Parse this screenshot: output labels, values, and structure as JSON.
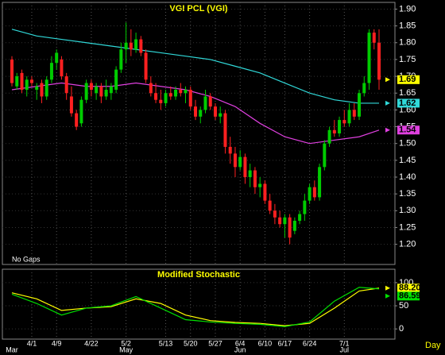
{
  "chart_data": [
    {
      "type": "candlestick",
      "title": "VGI PCL (VGI)",
      "note": "No Gaps",
      "x_axis_label": "Day",
      "categories": [
        null,
        null,
        null,
        null,
        "4/1",
        null,
        null,
        null,
        null,
        "4/9",
        null,
        null,
        null,
        null,
        null,
        null,
        "4/22",
        null,
        null,
        null,
        null,
        null,
        null,
        "5/2",
        null,
        null,
        null,
        null,
        null,
        null,
        null,
        "5/13",
        null,
        null,
        null,
        null,
        "5/20",
        null,
        null,
        null,
        null,
        "5/27",
        null,
        null,
        null,
        null,
        "6/4",
        null,
        null,
        null,
        null,
        "6/10",
        null,
        null,
        null,
        "6/17",
        null,
        null,
        null,
        null,
        "6/24",
        null,
        null,
        null,
        null,
        null,
        null,
        "7/1",
        null,
        null,
        null,
        null,
        null,
        null,
        null
      ],
      "months": [
        "Mar",
        null,
        null,
        null,
        null,
        null,
        null,
        null,
        null,
        null,
        null,
        null,
        null,
        null,
        null,
        null,
        null,
        null,
        null,
        null,
        null,
        null,
        null,
        "May",
        null,
        null,
        null,
        null,
        null,
        null,
        null,
        null,
        null,
        null,
        null,
        null,
        null,
        null,
        null,
        null,
        null,
        null,
        null,
        null,
        null,
        null,
        "Jun",
        null,
        null,
        null,
        null,
        null,
        null,
        null,
        null,
        null,
        null,
        null,
        null,
        null,
        null,
        null,
        null,
        null,
        null,
        null,
        null,
        "Jul",
        null,
        null,
        null,
        null,
        null,
        null,
        null
      ],
      "open": [
        1.75,
        1.67,
        1.71,
        1.66,
        1.69,
        1.66,
        1.68,
        1.64,
        1.69,
        1.74,
        1.75,
        1.7,
        1.64,
        1.59,
        1.56,
        1.63,
        1.68,
        1.65,
        1.67,
        1.64,
        1.65,
        1.66,
        1.72,
        1.78,
        1.8,
        1.78,
        1.81,
        1.77,
        1.68,
        1.65,
        1.63,
        1.62,
        1.65,
        1.64,
        1.66,
        1.65,
        1.66,
        1.61,
        1.58,
        1.6,
        1.64,
        1.61,
        1.58,
        1.59,
        1.49,
        1.47,
        1.43,
        1.46,
        1.4,
        1.42,
        1.37,
        1.38,
        1.33,
        1.3,
        1.28,
        1.26,
        1.28,
        1.24,
        1.27,
        1.29,
        1.33,
        1.37,
        1.34,
        1.43,
        1.5,
        1.54,
        1.53,
        1.57,
        1.56,
        1.6,
        1.58,
        1.65,
        1.68,
        1.83,
        1.8
      ],
      "high": [
        1.76,
        1.71,
        1.72,
        1.7,
        1.7,
        1.68,
        1.69,
        1.7,
        1.76,
        1.78,
        1.76,
        1.71,
        1.67,
        1.6,
        1.64,
        1.69,
        1.69,
        1.68,
        1.68,
        1.69,
        1.68,
        1.73,
        1.8,
        1.86,
        1.84,
        1.83,
        1.82,
        1.78,
        1.7,
        1.68,
        1.66,
        1.66,
        1.67,
        1.67,
        1.68,
        1.67,
        1.67,
        1.63,
        1.61,
        1.66,
        1.65,
        1.62,
        1.61,
        1.6,
        1.52,
        1.49,
        1.48,
        1.47,
        1.44,
        1.43,
        1.4,
        1.39,
        1.35,
        1.32,
        1.3,
        1.29,
        1.29,
        1.28,
        1.3,
        1.35,
        1.38,
        1.39,
        1.44,
        1.51,
        1.55,
        1.57,
        1.58,
        1.6,
        1.62,
        1.62,
        1.66,
        1.7,
        1.84,
        1.84,
        1.84
      ],
      "low": [
        1.67,
        1.66,
        1.65,
        1.64,
        1.67,
        1.63,
        1.62,
        1.63,
        1.68,
        1.72,
        1.69,
        1.63,
        1.58,
        1.54,
        1.55,
        1.62,
        1.64,
        1.63,
        1.62,
        1.63,
        1.63,
        1.65,
        1.71,
        1.74,
        1.76,
        1.77,
        1.76,
        1.68,
        1.64,
        1.62,
        1.6,
        1.61,
        1.63,
        1.63,
        1.64,
        1.62,
        1.6,
        1.57,
        1.56,
        1.59,
        1.6,
        1.57,
        1.56,
        1.47,
        1.44,
        1.4,
        1.42,
        1.38,
        1.37,
        1.35,
        1.34,
        1.32,
        1.29,
        1.26,
        1.25,
        1.22,
        1.2,
        1.23,
        1.26,
        1.27,
        1.32,
        1.33,
        1.33,
        1.42,
        1.49,
        1.52,
        1.52,
        1.55,
        1.55,
        1.57,
        1.57,
        1.64,
        1.66,
        1.78,
        1.66
      ],
      "close": [
        1.68,
        1.7,
        1.66,
        1.69,
        1.68,
        1.67,
        1.64,
        1.69,
        1.74,
        1.77,
        1.7,
        1.65,
        1.59,
        1.55,
        1.63,
        1.68,
        1.66,
        1.67,
        1.64,
        1.66,
        1.67,
        1.72,
        1.78,
        1.8,
        1.78,
        1.81,
        1.77,
        1.69,
        1.65,
        1.63,
        1.62,
        1.65,
        1.64,
        1.66,
        1.65,
        1.66,
        1.61,
        1.58,
        1.6,
        1.64,
        1.61,
        1.58,
        1.59,
        1.49,
        1.47,
        1.43,
        1.46,
        1.4,
        1.42,
        1.37,
        1.38,
        1.33,
        1.3,
        1.28,
        1.26,
        1.28,
        1.22,
        1.27,
        1.29,
        1.33,
        1.37,
        1.34,
        1.43,
        1.5,
        1.54,
        1.53,
        1.57,
        1.56,
        1.6,
        1.58,
        1.65,
        1.68,
        1.83,
        1.8,
        1.69
      ],
      "up_color": "#00cc00",
      "down_color": "#ff2020",
      "last_label": "1.69",
      "last_label_color": "#ffff00",
      "series": [
        {
          "color": "#30d8d8",
          "x": [
            0,
            5,
            10,
            15,
            20,
            25,
            30,
            35,
            40,
            45,
            50,
            55,
            60,
            65,
            70,
            74
          ],
          "values": [
            1.84,
            1.82,
            1.81,
            1.8,
            1.79,
            1.78,
            1.77,
            1.76,
            1.75,
            1.73,
            1.71,
            1.68,
            1.65,
            1.63,
            1.62,
            1.62
          ],
          "last_label": "1.62"
        },
        {
          "color": "#e040e0",
          "x": [
            0,
            5,
            10,
            15,
            20,
            25,
            30,
            35,
            40,
            45,
            50,
            55,
            60,
            65,
            70,
            74
          ],
          "values": [
            1.66,
            1.67,
            1.68,
            1.67,
            1.67,
            1.68,
            1.67,
            1.66,
            1.64,
            1.61,
            1.56,
            1.52,
            1.5,
            1.51,
            1.52,
            1.54
          ],
          "last_label": "1.54"
        }
      ],
      "ylim": [
        1.14,
        1.92
      ],
      "yticks": [
        {
          "value": 1.9,
          "label": "1.90"
        },
        1.85,
        {
          "value": 1.8,
          "label": "1.80"
        },
        1.75,
        {
          "value": 1.7,
          "label": "1.70"
        },
        1.65,
        {
          "value": 1.6,
          "label": "1.60"
        },
        1.55,
        {
          "value": 1.5,
          "label": "1.50"
        },
        1.45,
        {
          "value": 1.4,
          "label": "1.40"
        },
        1.35,
        {
          "value": 1.3,
          "label": "1.30"
        },
        1.25,
        {
          "value": 1.2,
          "label": "1.20"
        }
      ],
      "grid": true
    },
    {
      "type": "line",
      "title": "Modified Stochastic",
      "series": [
        {
          "color": "#ffff00",
          "x": [
            0,
            5,
            10,
            15,
            20,
            25,
            30,
            35,
            40,
            45,
            50,
            55,
            60,
            65,
            70,
            74
          ],
          "values": [
            78,
            65,
            40,
            45,
            48,
            65,
            55,
            30,
            18,
            14,
            12,
            7,
            12,
            45,
            82,
            88.2
          ],
          "last_label": "88.20"
        },
        {
          "color": "#00e000",
          "x": [
            0,
            5,
            10,
            15,
            20,
            25,
            30,
            35,
            40,
            45,
            50,
            55,
            60,
            65,
            70,
            74
          ],
          "values": [
            75,
            55,
            30,
            45,
            50,
            70,
            45,
            20,
            15,
            12,
            10,
            5,
            15,
            60,
            90,
            86.59
          ],
          "last_label": "86.59"
        }
      ],
      "ylim": [
        -22,
        129
      ],
      "yticks": [
        0,
        50,
        100
      ]
    }
  ]
}
